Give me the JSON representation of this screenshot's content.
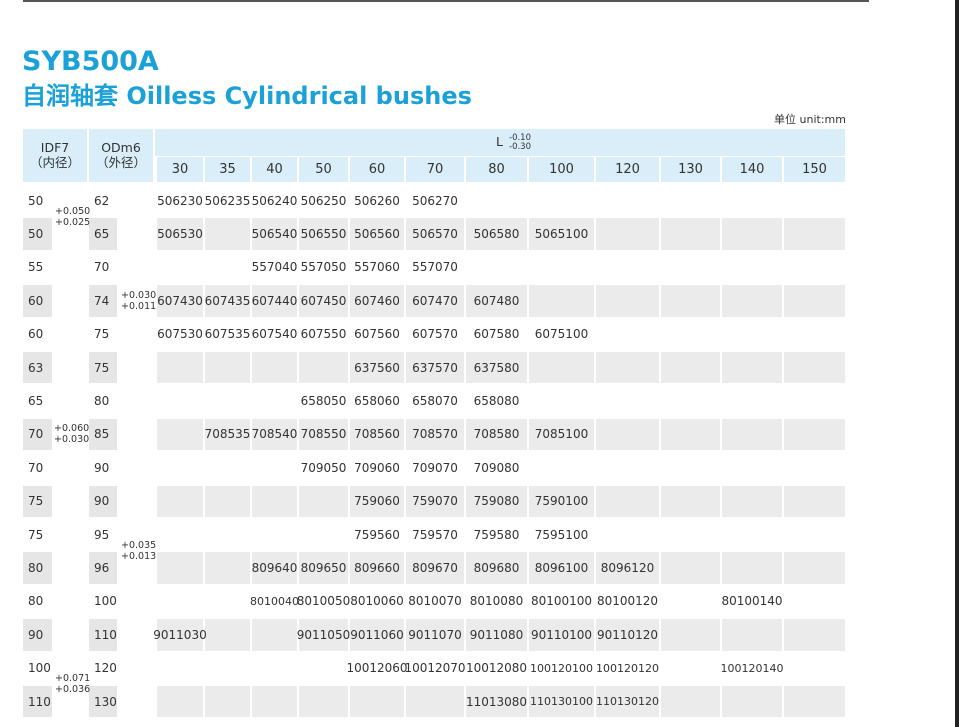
{
  "title": "SYB500A",
  "subtitle": "自润轴套 Oilless Cylindrical bushes",
  "unit_label": "单位 unit:mm",
  "colors": {
    "accent": "#1aa1d8",
    "header_bg": "#d9eef9",
    "row_alt": "#ebebeb",
    "lead_alt": "#e6e6e6",
    "text": "#333333"
  },
  "header": {
    "id_label": "IDF7",
    "id_cn": "（内径）",
    "od_label": "ODm6",
    "od_cn": "（外径）",
    "l_label": "L",
    "l_tol_upper": "-0.10",
    "l_tol_lower": "-0.30",
    "lengths": [
      "30",
      "35",
      "40",
      "50",
      "60",
      "70",
      "80",
      "100",
      "120",
      "130",
      "140",
      "150"
    ]
  },
  "id_tolerances": [
    {
      "upper": "+0.050",
      "lower": "+0.025"
    },
    {
      "upper": "+0.060",
      "lower": "+0.030"
    },
    {
      "upper": "+0.071",
      "lower": "+0.036"
    }
  ],
  "od_tolerances": [
    {
      "upper": "+0.030",
      "lower": "+0.011"
    },
    {
      "upper": "+0.035",
      "lower": "+0.013"
    }
  ],
  "rows": [
    {
      "id": "50",
      "od": "62",
      "cells": [
        "506230",
        "506235",
        "506240",
        "506250",
        "506260",
        "506270",
        "",
        "",
        "",
        "",
        "",
        ""
      ]
    },
    {
      "id": "50",
      "od": "65",
      "cells": [
        "506530",
        "",
        "506540",
        "506550",
        "506560",
        "506570",
        "506580",
        "5065100",
        "",
        "",
        "",
        ""
      ]
    },
    {
      "id": "55",
      "od": "70",
      "cells": [
        "",
        "",
        "557040",
        "557050",
        "557060",
        "557070",
        "",
        "",
        "",
        "",
        "",
        ""
      ]
    },
    {
      "id": "60",
      "od": "74",
      "cells": [
        "607430",
        "607435",
        "607440",
        "607450",
        "607460",
        "607470",
        "607480",
        "",
        "",
        "",
        "",
        ""
      ]
    },
    {
      "id": "60",
      "od": "75",
      "cells": [
        "607530",
        "607535",
        "607540",
        "607550",
        "607560",
        "607570",
        "607580",
        "6075100",
        "",
        "",
        "",
        ""
      ]
    },
    {
      "id": "63",
      "od": "75",
      "cells": [
        "",
        "",
        "",
        "",
        "637560",
        "637570",
        "637580",
        "",
        "",
        "",
        "",
        ""
      ]
    },
    {
      "id": "65",
      "od": "80",
      "cells": [
        "",
        "",
        "",
        "658050",
        "658060",
        "658070",
        "658080",
        "",
        "",
        "",
        "",
        ""
      ]
    },
    {
      "id": "70",
      "od": "85",
      "cells": [
        "",
        "708535",
        "708540",
        "708550",
        "708560",
        "708570",
        "708580",
        "7085100",
        "",
        "",
        "",
        ""
      ]
    },
    {
      "id": "70",
      "od": "90",
      "cells": [
        "",
        "",
        "",
        "709050",
        "709060",
        "709070",
        "709080",
        "",
        "",
        "",
        "",
        ""
      ]
    },
    {
      "id": "75",
      "od": "90",
      "cells": [
        "",
        "",
        "",
        "",
        "759060",
        "759070",
        "759080",
        "7590100",
        "",
        "",
        "",
        ""
      ]
    },
    {
      "id": "75",
      "od": "95",
      "cells": [
        "",
        "",
        "",
        "",
        "759560",
        "759570",
        "759580",
        "7595100",
        "",
        "",
        "",
        ""
      ]
    },
    {
      "id": "80",
      "od": "96",
      "cells": [
        "",
        "",
        "809640",
        "809650",
        "809660",
        "809670",
        "809680",
        "8096100",
        "8096120",
        "",
        "",
        ""
      ]
    },
    {
      "id": "80",
      "od": "100",
      "cells": [
        "",
        "",
        "8010040",
        "8010050",
        "8010060",
        "8010070",
        "8010080",
        "80100100",
        "80100120",
        "",
        "80100140",
        ""
      ]
    },
    {
      "id": "90",
      "od": "110",
      "cells": [
        "9011030",
        "",
        "",
        "9011050",
        "9011060",
        "9011070",
        "9011080",
        "90110100",
        "90110120",
        "",
        "",
        ""
      ]
    },
    {
      "id": "100",
      "od": "120",
      "cells": [
        "",
        "",
        "",
        "",
        "10012060",
        "10012070",
        "10012080",
        "100120100",
        "100120120",
        "",
        "100120140",
        ""
      ]
    },
    {
      "id": "110",
      "od": "130",
      "cells": [
        "",
        "",
        "",
        "",
        "",
        "",
        "11013080",
        "110130100",
        "110130120",
        "",
        "",
        ""
      ]
    }
  ]
}
